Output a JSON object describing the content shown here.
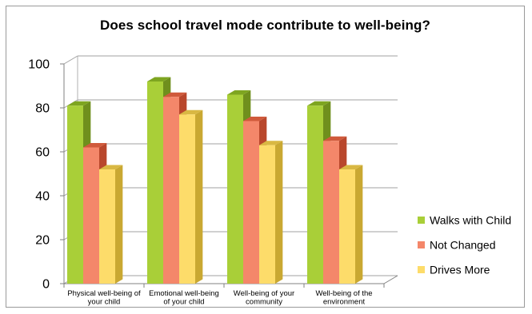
{
  "chart_data": {
    "type": "bar",
    "title": "Does school travel mode contribute to well-being?",
    "categories": [
      [
        "Physical well-being of",
        "your child"
      ],
      [
        "Emotional well-being",
        "of your child"
      ],
      [
        "Well-being of your",
        "community"
      ],
      [
        "Well-being of the",
        "environment"
      ]
    ],
    "series": [
      {
        "name": "Walks with Child",
        "values": [
          81,
          92,
          86,
          81
        ]
      },
      {
        "name": "Not Changed",
        "values": [
          62,
          85,
          74,
          65
        ]
      },
      {
        "name": "Drives More",
        "values": [
          52,
          77,
          63,
          52
        ]
      }
    ],
    "ylim": [
      0,
      100
    ],
    "yticks": [
      0,
      20,
      40,
      60,
      80,
      100
    ],
    "grid": true,
    "legend_position": "right",
    "colors": {
      "Walks with Child": {
        "front": "#a9cf38",
        "side": "#6f8f1d",
        "top": "#7ea520"
      },
      "Not Changed": {
        "front": "#f4876a",
        "side": "#b9472c",
        "top": "#d05a3b"
      },
      "Drives More": {
        "front": "#fddc6a",
        "side": "#c9a832",
        "top": "#d9b843"
      }
    }
  }
}
